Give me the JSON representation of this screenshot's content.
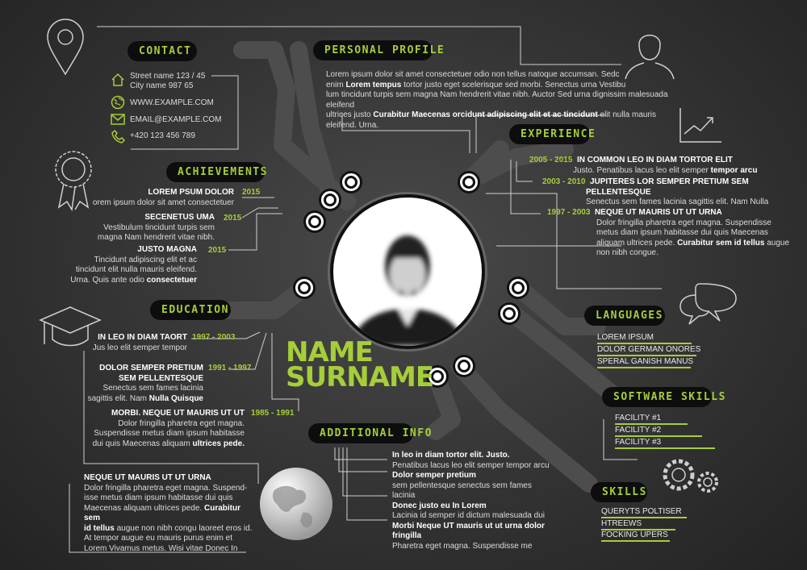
{
  "contact": {
    "title": "CONTACT",
    "address1": "Street name 123 / 45",
    "address2": "City name 987 65",
    "web": "WWW.EXAMPLE.COM",
    "email": "EMAIL@EXAMPLE.COM",
    "phone": "+420 123 456 789"
  },
  "profile": {
    "title": "PERSONAL PROFILE",
    "line1": "Lorem ipsum dolor sit amet consectetuer odio non tellus natoque accumsan. Sedc",
    "line2a": "enim ",
    "line2b": "Lorem tempus",
    "line2c": " tortor justo eget scelerisque sed morbi. Senectus urna Vestibu",
    "line3": "lum tincidunt turpis sem magna Nam hendrerit vitae nibh. Auctor Sed urna dignissim malesuada eleifend",
    "line4a": "ultrices justo ",
    "line4b": "Curabitur Maecenas orcidunt adipiscing elit et ac tincidunt",
    "line4c": " elit nulla mauris eleifend. Urna."
  },
  "experience": {
    "title": "EXPERIENCE",
    "items": [
      {
        "years": "2005 - 2015",
        "title": "IN COMMON  LEO IN DIAM TORTOR ELIT",
        "line1": "Justo. Penatibus lacus leo elit semper ",
        "line1b": "tempor arcu"
      },
      {
        "years": "2003 - 2010",
        "title": "JUPITERES LOR SEMPER PRETIUM SEM",
        "title2": "PELLENTESQUE",
        "line1": "Senectus sem fames lacinia sagittis elit. Nam Nulla"
      },
      {
        "years": "1997 - 2003",
        "title": "NEQUE UT MAURIS UT UT URNA",
        "line1": "Dolor fringilla pharetra eget magna. Suspendisse",
        "line2": "metus diam ipsum habitasse dui quis Maecenas",
        "line3a": "aliquam ultrices pede. ",
        "line3b": "Curabitur sem id tellus",
        "line3c": " augue",
        "line4": "non nibh congue."
      }
    ]
  },
  "achievements": {
    "title": "ACHIEVEMENTS",
    "items": [
      {
        "year": "2015",
        "title": "LOREM PSUM DOLOR",
        "line1": "orem ipsum dolor sit amet consectetuer"
      },
      {
        "year": "2015",
        "title": "SECENETUS UMA",
        "line1": "Vestibulum tincidunt turpis sem",
        "line2": "magna Nam hendrerit vitae nibh."
      },
      {
        "year": "2015",
        "title": "JUSTO MAGNA",
        "line1": "Tincidunt adipiscing elit et ac",
        "line2": "tincidunt elit nulla mauris eleifend.",
        "line3a": "Urna. Quis ante odio ",
        "line3b": "consectetuer"
      }
    ]
  },
  "education": {
    "title": "EDUCATION",
    "items": [
      {
        "years": "1997 - 2003",
        "title": "IN LEO IN DIAM TAORT",
        "line1": "Jus leo elit semper tempor"
      },
      {
        "years": "1991 - 1997",
        "title": "DOLOR SEMPER PRETIUM",
        "title2": "SEM PELLENTESQUE",
        "line1": "Senectus sem fames lacinia",
        "line2a": "sagittis elit. Nam ",
        "line2b": "Nulla Quisque"
      },
      {
        "years": "1985 - 1991",
        "title": "MORBI. NEQUE UT MAURIS UT UT",
        "line1": "Dolor fringilla pharetra eget magna.",
        "line2": "Suspendisse metus diam ipsum habitasse",
        "line3a": "dui quis Maecenas aliquam ",
        "line3b": "ultrices pede."
      }
    ]
  },
  "name": {
    "first": "NAME",
    "last": "SURNAME"
  },
  "bottom_left": {
    "title": "NEQUE UT MAURIS UT UT URNA",
    "line1": "Dolor fringilla pharetra eget magna. Suspend-",
    "line2": "isse metus diam ipsum habitasse dui quis",
    "line3a": "Maecenas aliquam ultrices pede. ",
    "line3b": "Curabitur sem",
    "line4a": "id tellus",
    "line4b": " augue non nibh congu laoreet eros id.",
    "line5": "At tempor augue eu mauris purus enim et",
    "line6": "Lorem Vivamus metus. Wisi vitae Donec In"
  },
  "additional": {
    "title": "ADDITIONAL INFO",
    "l1": "In leo in diam tortor elit. Justo.",
    "l2": "Penatibus lacus leo elit semper tempor arcu",
    "l3": "Dolor semper pretium",
    "l4": "sem pellentesque senectus sem fames",
    "l5": "lacinia",
    "l6": "Donec justo eu In Lorem",
    "l7": "Lacinia id semper id dictum malesuada dui",
    "l8": "Morbi Neque UT mauris ut ut urna dolor",
    "l9": "fringilla",
    "l10": "Pharetra eget magna. Suspendisse me"
  },
  "languages": {
    "title": "LANGUAGES",
    "items": [
      "LOREM IPSUM",
      "DOLOR GERMAN ONORES",
      "SPERAL GANISH MANUS"
    ]
  },
  "software": {
    "title": "SOFTWARE SKILLS",
    "items": [
      "FACILITY #1",
      "FACILITY #2",
      "FACILITY #3"
    ]
  },
  "skills": {
    "title": "SKILLS",
    "items": [
      "QUERYTS POLTISER",
      "HTREEWS",
      "FOCKING UPERS"
    ]
  },
  "colors": {
    "accent": "#a6ce39",
    "pill": "#0d0d0d",
    "background": "#3a3a3a"
  },
  "icons": [
    "location-pin-icon",
    "person-icon",
    "home-icon",
    "globe-icon",
    "envelope-icon",
    "phone-icon",
    "award-ribbon-icon",
    "growth-chart-icon",
    "graduation-cap-icon",
    "speech-bubbles-icon",
    "gears-icon",
    "world-globe-icon"
  ]
}
